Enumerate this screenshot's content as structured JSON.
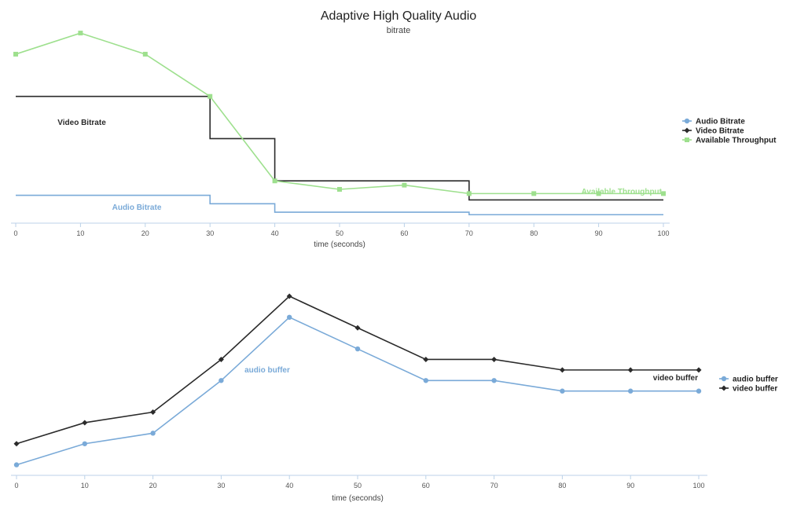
{
  "title": "Adaptive High Quality Audio",
  "subtitle": "bitrate",
  "colors": {
    "audio": "#7aaad8",
    "video": "#2b2b2b",
    "throughput": "#9ee08e",
    "axis": "#bcd2e8"
  },
  "chart_data": [
    {
      "type": "line",
      "step": true,
      "xlabel": "time (seconds)",
      "ylabel": "",
      "xlim": [
        0,
        100
      ],
      "xticks": [
        0,
        10,
        20,
        30,
        40,
        50,
        60,
        70,
        80,
        90,
        100
      ],
      "ylim": [
        0,
        4.65
      ],
      "grid": false,
      "legend": "right",
      "series": [
        {
          "name": "Audio Bitrate",
          "key": "audio",
          "marker": "none",
          "x": [
            0,
            30,
            40,
            70,
            100
          ],
          "y": [
            0.66,
            0.46,
            0.26,
            0.2,
            0.2
          ],
          "annotation": "Audio Bitrate"
        },
        {
          "name": "Video Bitrate",
          "key": "video",
          "marker": "none",
          "x": [
            0,
            30,
            40,
            70,
            100
          ],
          "y": [
            3.0,
            2.0,
            1.0,
            0.55,
            0.55
          ],
          "annotation": "Video Bitrate"
        },
        {
          "name": "Available Throughput",
          "key": "throughput",
          "marker": "square",
          "x": [
            0,
            10,
            20,
            30,
            40,
            50,
            60,
            70,
            80,
            90,
            100
          ],
          "y": [
            4.0,
            4.5,
            4.0,
            3.0,
            1.0,
            0.8,
            0.9,
            0.7,
            0.7,
            0.7,
            0.7
          ],
          "annotation": "Available Throughput"
        }
      ]
    },
    {
      "type": "line",
      "xlabel": "time (seconds)",
      "ylabel": "",
      "xlim": [
        0,
        100
      ],
      "xticks": [
        0,
        10,
        20,
        30,
        40,
        50,
        60,
        70,
        80,
        90,
        100
      ],
      "ylim": [
        0,
        17
      ],
      "grid": false,
      "legend": "right",
      "series": [
        {
          "name": "audio buffer",
          "key": "audio",
          "marker": "circle",
          "x": [
            0,
            10,
            20,
            30,
            40,
            50,
            60,
            70,
            80,
            90,
            100
          ],
          "y": [
            1,
            3,
            4,
            9,
            15,
            12,
            9,
            9,
            8,
            8,
            8
          ],
          "annotation": "audio buffer"
        },
        {
          "name": "video buffer",
          "key": "video",
          "marker": "diamond",
          "x": [
            0,
            10,
            20,
            30,
            40,
            50,
            60,
            70,
            80,
            90,
            100
          ],
          "y": [
            3,
            5,
            6,
            11,
            17,
            14,
            11,
            11,
            10,
            10,
            10
          ],
          "annotation": "video buffer"
        }
      ]
    }
  ]
}
